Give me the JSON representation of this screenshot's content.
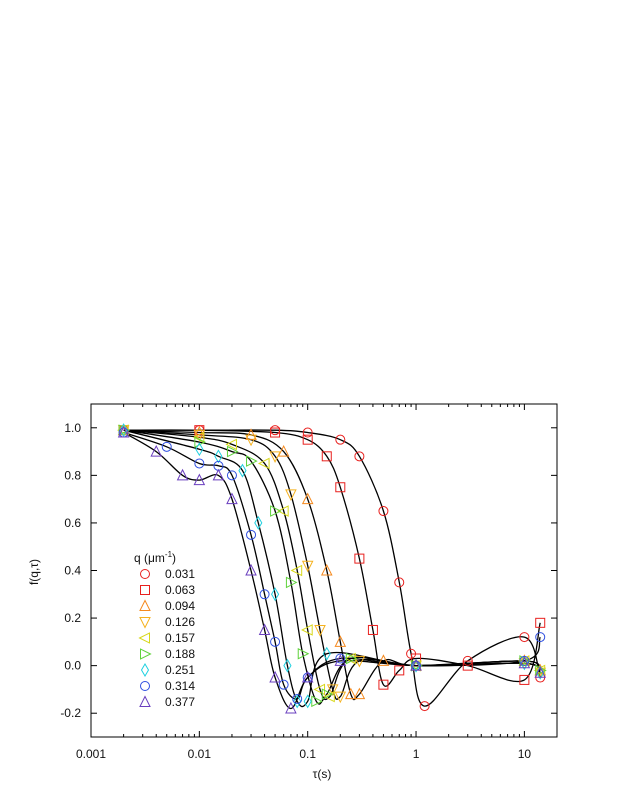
{
  "chart_data": {
    "type": "scatter",
    "title": "",
    "xlabel": "τ(s)",
    "ylabel": "f(q,τ)",
    "xscale": "log",
    "xlim": [
      0.001,
      20
    ],
    "ylim": [
      -0.3,
      1.1
    ],
    "xticks": [
      0.001,
      0.01,
      0.1,
      1,
      10
    ],
    "xtick_labels": [
      "0.001",
      "0.01",
      "0.1",
      "1",
      "10"
    ],
    "yticks": [
      -0.2,
      0.0,
      0.2,
      0.4,
      0.6,
      0.8,
      1.0
    ],
    "ytick_labels": [
      "-0.2",
      "0.0",
      "0.2",
      "0.4",
      "0.6",
      "0.8",
      "1.0"
    ],
    "grid": false,
    "legend": {
      "title": "q (μm",
      "title_sup": "-1",
      "title_end": ")",
      "placement": "lower-left"
    },
    "fit_line_color": "#000000",
    "series": [
      {
        "name": "0.031",
        "marker": "circle",
        "color": "#e8201e",
        "x": [
          0.002,
          0.01,
          0.05,
          0.1,
          0.2,
          0.3,
          0.5,
          0.7,
          0.9,
          1.2,
          3,
          10,
          14
        ],
        "y": [
          0.99,
          0.99,
          0.99,
          0.98,
          0.95,
          0.88,
          0.65,
          0.35,
          0.05,
          -0.17,
          0.02,
          0.12,
          -0.05
        ]
      },
      {
        "name": "0.063",
        "marker": "square",
        "color": "#e8201e",
        "x": [
          0.002,
          0.01,
          0.05,
          0.1,
          0.15,
          0.2,
          0.3,
          0.4,
          0.5,
          0.7,
          1,
          3,
          10,
          14
        ],
        "y": [
          0.99,
          0.99,
          0.98,
          0.95,
          0.88,
          0.75,
          0.45,
          0.15,
          -0.08,
          -0.02,
          0.03,
          0.0,
          -0.06,
          0.18
        ]
      },
      {
        "name": "0.094",
        "marker": "triangle-up",
        "color": "#f58a1f",
        "x": [
          0.002,
          0.01,
          0.03,
          0.06,
          0.1,
          0.15,
          0.2,
          0.25,
          0.3,
          0.5,
          1,
          10,
          14
        ],
        "y": [
          0.99,
          0.98,
          0.97,
          0.9,
          0.7,
          0.4,
          0.1,
          -0.12,
          -0.12,
          0.02,
          0.0,
          0.02,
          -0.02
        ]
      },
      {
        "name": "0.126",
        "marker": "triangle-down",
        "color": "#f5b21f",
        "x": [
          0.002,
          0.01,
          0.03,
          0.05,
          0.07,
          0.1,
          0.13,
          0.17,
          0.2,
          0.3,
          1,
          10,
          14
        ],
        "y": [
          0.99,
          0.97,
          0.95,
          0.88,
          0.72,
          0.42,
          0.15,
          -0.1,
          -0.13,
          0.02,
          0.0,
          0.01,
          -0.03
        ]
      },
      {
        "name": "0.157",
        "marker": "triangle-left",
        "color": "#d8d81a",
        "x": [
          0.002,
          0.01,
          0.02,
          0.04,
          0.06,
          0.08,
          0.1,
          0.13,
          0.16,
          0.25,
          1,
          10,
          14
        ],
        "y": [
          0.99,
          0.96,
          0.93,
          0.85,
          0.65,
          0.4,
          0.15,
          -0.1,
          -0.13,
          0.03,
          0.0,
          0.02,
          -0.02
        ]
      },
      {
        "name": "0.188",
        "marker": "triangle-right",
        "color": "#5fd23b",
        "x": [
          0.002,
          0.01,
          0.02,
          0.03,
          0.05,
          0.07,
          0.09,
          0.12,
          0.15,
          0.25,
          1,
          10,
          14
        ],
        "y": [
          0.99,
          0.94,
          0.9,
          0.86,
          0.65,
          0.35,
          0.05,
          -0.15,
          -0.12,
          0.03,
          0.0,
          0.02,
          -0.02
        ]
      },
      {
        "name": "0.251",
        "marker": "diamond",
        "color": "#1fd0e0",
        "x": [
          0.002,
          0.01,
          0.015,
          0.025,
          0.035,
          0.05,
          0.065,
          0.08,
          0.1,
          0.15,
          1,
          10,
          14
        ],
        "y": [
          0.99,
          0.91,
          0.88,
          0.82,
          0.6,
          0.3,
          0.0,
          -0.15,
          -0.15,
          0.05,
          0.0,
          0.01,
          -0.03
        ]
      },
      {
        "name": "0.314",
        "marker": "circle",
        "color": "#2f4fe0",
        "x": [
          0.002,
          0.005,
          0.01,
          0.015,
          0.02,
          0.03,
          0.04,
          0.05,
          0.06,
          0.08,
          0.1,
          0.2,
          1,
          10,
          14
        ],
        "y": [
          0.98,
          0.92,
          0.85,
          0.84,
          0.8,
          0.55,
          0.3,
          0.1,
          -0.08,
          -0.14,
          -0.05,
          0.03,
          0.0,
          0.02,
          0.12
        ]
      },
      {
        "name": "0.377",
        "marker": "triangle-up",
        "color": "#6a3fbf",
        "x": [
          0.002,
          0.004,
          0.007,
          0.01,
          0.015,
          0.02,
          0.03,
          0.04,
          0.05,
          0.07,
          0.1,
          0.2,
          1,
          10,
          14
        ],
        "y": [
          0.98,
          0.9,
          0.8,
          0.78,
          0.8,
          0.7,
          0.4,
          0.15,
          -0.05,
          -0.18,
          -0.05,
          0.02,
          0.0,
          0.01,
          -0.03
        ]
      }
    ]
  }
}
